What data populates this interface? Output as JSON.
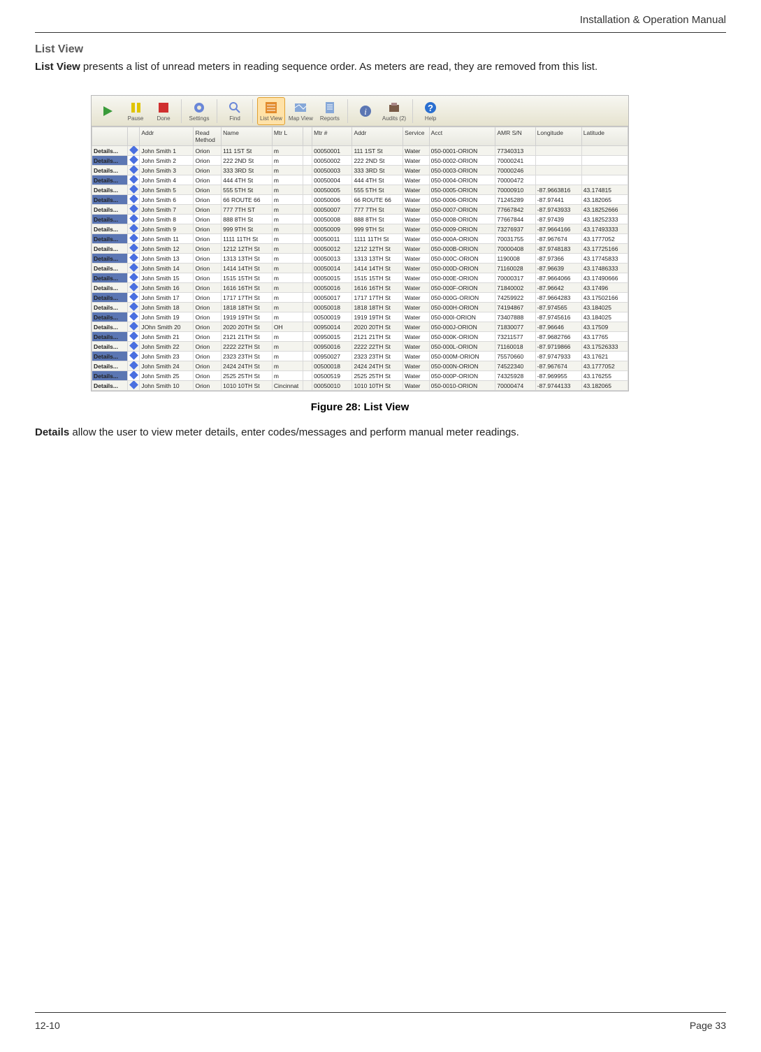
{
  "header": {
    "right": "Installation & Operation Manual"
  },
  "section": {
    "title": "List View",
    "intro_bold": "List View",
    "intro_rest": " presents a list of unread meters in reading sequence order.  As meters are read, they are removed from this list."
  },
  "figure_caption": "Figure 28:  List View",
  "details_text_bold": "Details",
  "details_text_rest": " allow the user to view meter details, enter codes/messages and perform manual meter readings.",
  "footer": {
    "left": "12-10",
    "right": "Page 33"
  },
  "toolbar": {
    "items": [
      {
        "name": "play-icon",
        "label": "",
        "color": "#3a9b3a",
        "shape": "play"
      },
      {
        "name": "pause-icon",
        "label": "Pause",
        "color": "#e0c400",
        "shape": "pause"
      },
      {
        "name": "done-icon",
        "label": "Done",
        "color": "#d03030",
        "shape": "stop"
      },
      {
        "name": "sep"
      },
      {
        "name": "settings-icon",
        "label": "Settings",
        "color": "#6a87d8",
        "shape": "gear"
      },
      {
        "name": "sep"
      },
      {
        "name": "find-icon",
        "label": "Find",
        "color": "#6a87d8",
        "shape": "find"
      },
      {
        "name": "sep"
      },
      {
        "name": "listview-icon",
        "label": "List View",
        "color": "#e28b2c",
        "shape": "list",
        "selected": true
      },
      {
        "name": "mapview-icon",
        "label": "Map View",
        "color": "#86a8d8",
        "shape": "map"
      },
      {
        "name": "reports-icon",
        "label": "Reports",
        "color": "#86a8d8",
        "shape": "reports"
      },
      {
        "name": "sep"
      },
      {
        "name": "info-icon",
        "label": "",
        "color": "#5b76b3",
        "shape": "info"
      },
      {
        "name": "audits-icon",
        "label": "Audits (2)",
        "color": "#7a5c48",
        "shape": "audits"
      },
      {
        "name": "sep"
      },
      {
        "name": "help-icon",
        "label": "Help",
        "color": "#2a6fd0",
        "shape": "help"
      }
    ]
  },
  "columns": [
    "",
    "",
    "Addr",
    "Read Method",
    "Name",
    "Mtr L",
    "",
    "Mtr #",
    "Addr",
    "Service",
    "Acct",
    "AMR S/N",
    "Longitude",
    "Latitude"
  ],
  "details_label": "Details...",
  "rows": [
    {
      "name": "John Smith 1",
      "meth": "Orion",
      "addr1": "111 1ST St",
      "mtrl": "m",
      "mtrn": "00050001",
      "addr2": "111 1ST St",
      "svc": "Water",
      "acct": "050-0001-ORION",
      "amr": "77340313",
      "lon": "",
      "lat": ""
    },
    {
      "name": "John Smith 2",
      "meth": "Orion",
      "addr1": "222 2ND St",
      "mtrl": "m",
      "mtrn": "00050002",
      "addr2": "222 2ND St",
      "svc": "Water",
      "acct": "050-0002-ORION",
      "amr": "70000241",
      "lon": "",
      "lat": ""
    },
    {
      "name": "John Smith 3",
      "meth": "Orion",
      "addr1": "333 3RD St",
      "mtrl": "m",
      "mtrn": "00050003",
      "addr2": "333 3RD St",
      "svc": "Water",
      "acct": "050-0003-ORION",
      "amr": "70000246",
      "lon": "",
      "lat": ""
    },
    {
      "name": "John Smith 4",
      "meth": "Orion",
      "addr1": "444 4TH St",
      "mtrl": "m",
      "mtrn": "00050004",
      "addr2": "444 4TH St",
      "svc": "Water",
      "acct": "050-0004-ORION",
      "amr": "70000472",
      "lon": "",
      "lat": ""
    },
    {
      "name": "John Smith 5",
      "meth": "Orion",
      "addr1": "555 5TH St",
      "mtrl": "m",
      "mtrn": "00050005",
      "addr2": "555 5TH St",
      "svc": "Water",
      "acct": "050-0005-ORION",
      "amr": "70000910",
      "lon": "-87.9663816",
      "lat": "43.174815"
    },
    {
      "name": "John Smith 6",
      "meth": "Orion",
      "addr1": "66 ROUTE 66",
      "mtrl": "m",
      "mtrn": "00050006",
      "addr2": "66 ROUTE 66",
      "svc": "Water",
      "acct": "050-0006-ORION",
      "amr": "71245289",
      "lon": "-87.97441",
      "lat": "43.182065"
    },
    {
      "name": "John Smith 7",
      "meth": "Orion",
      "addr1": "777 7TH ST",
      "mtrl": "m",
      "mtrn": "00050007",
      "addr2": "777 7TH St",
      "svc": "Water",
      "acct": "050-0007-ORION",
      "amr": "77667842",
      "lon": "-87.9743933",
      "lat": "43.18252666"
    },
    {
      "name": "John Smith 8",
      "meth": "Orion",
      "addr1": "888 8TH St",
      "mtrl": "m",
      "mtrn": "00050008",
      "addr2": "888 8TH St",
      "svc": "Water",
      "acct": "050-0008-ORION",
      "amr": "77667844",
      "lon": "-87.97439",
      "lat": "43.18252333"
    },
    {
      "name": "John Smith 9",
      "meth": "Orion",
      "addr1": "999 9TH St",
      "mtrl": "m",
      "mtrn": "00050009",
      "addr2": "999 9TH St",
      "svc": "Water",
      "acct": "050-0009-ORION",
      "amr": "73276937",
      "lon": "-87.9664166",
      "lat": "43.17493333"
    },
    {
      "name": "John Smith 11",
      "meth": "Orion",
      "addr1": "1111 11TH St",
      "mtrl": "m",
      "mtrn": "00050011",
      "addr2": "1111 11TH St",
      "svc": "Water",
      "acct": "050-000A-ORION",
      "amr": "70031755",
      "lon": "-87.967674",
      "lat": "43.1777052"
    },
    {
      "name": "John Smith 12",
      "meth": "Orion",
      "addr1": "1212 12TH St",
      "mtrl": "m",
      "mtrn": "00050012",
      "addr2": "1212 12TH St",
      "svc": "Water",
      "acct": "050-000B-ORION",
      "amr": "70000408",
      "lon": "-87.9748183",
      "lat": "43.17725166"
    },
    {
      "name": "John Smith 13",
      "meth": "Orion",
      "addr1": "1313 13TH St",
      "mtrl": "m",
      "mtrn": "00050013",
      "addr2": "1313 13TH St",
      "svc": "Water",
      "acct": "050-000C-ORION",
      "amr": "1190008",
      "lon": "-87.97366",
      "lat": "43.17745833"
    },
    {
      "name": "John Smith 14",
      "meth": "Orion",
      "addr1": "1414 14TH St",
      "mtrl": "m",
      "mtrn": "00050014",
      "addr2": "1414 14TH St",
      "svc": "Water",
      "acct": "050-000D-ORION",
      "amr": "71160028",
      "lon": "-87.96639",
      "lat": "43.17486333"
    },
    {
      "name": "John Smith 15",
      "meth": "Orion",
      "addr1": "1515 15TH St",
      "mtrl": "m",
      "mtrn": "00050015",
      "addr2": "1515 15TH St",
      "svc": "Water",
      "acct": "050-000E-ORION",
      "amr": "70000317",
      "lon": "-87.9664066",
      "lat": "43.17490666"
    },
    {
      "name": "John Smith 16",
      "meth": "Orion",
      "addr1": "1616 16TH St",
      "mtrl": "m",
      "mtrn": "00050016",
      "addr2": "1616 16TH St",
      "svc": "Water",
      "acct": "050-000F-ORION",
      "amr": "71840002",
      "lon": "-87.96642",
      "lat": "43.17496"
    },
    {
      "name": "John Smith 17",
      "meth": "Orion",
      "addr1": "1717 17TH St",
      "mtrl": "m",
      "mtrn": "00050017",
      "addr2": "1717 17TH St",
      "svc": "Water",
      "acct": "050-000G-ORION",
      "amr": "74259922",
      "lon": "-87.9664283",
      "lat": "43.17502166"
    },
    {
      "name": "John Smith 18",
      "meth": "Orion",
      "addr1": "1818 18TH St",
      "mtrl": "m",
      "mtrn": "00050018",
      "addr2": "1818 18TH St",
      "svc": "Water",
      "acct": "050-000H-ORION",
      "amr": "74194867",
      "lon": "-87.974565",
      "lat": "43.184025"
    },
    {
      "name": "John Smith 19",
      "meth": "Orion",
      "addr1": "1919 19TH St",
      "mtrl": "m",
      "mtrn": "00500019",
      "addr2": "1919 19TH St",
      "svc": "Water",
      "acct": "050-000I-ORION",
      "amr": "73407888",
      "lon": "-87.9745616",
      "lat": "43.184025"
    },
    {
      "name": "JOhn Smith 20",
      "meth": "Orion",
      "addr1": "2020 20TH St",
      "mtrl": "OH",
      "mtrn": "00950014",
      "addr2": "2020 20TH St",
      "svc": "Water",
      "acct": "050-000J-ORION",
      "amr": "71830077",
      "lon": "-87.96646",
      "lat": "43.17509"
    },
    {
      "name": "John Smith 21",
      "meth": "Orion",
      "addr1": "2121 21TH St",
      "mtrl": "m",
      "mtrn": "00950015",
      "addr2": "2121 21TH St",
      "svc": "Water",
      "acct": "050-000K-ORION",
      "amr": "73211577",
      "lon": "-87.9682766",
      "lat": "43.17765"
    },
    {
      "name": "John Smith 22",
      "meth": "Orion",
      "addr1": "2222 22TH St",
      "mtrl": "m",
      "mtrn": "00950016",
      "addr2": "2222 22TH St",
      "svc": "Water",
      "acct": "050-000L-ORION",
      "amr": "71160018",
      "lon": "-87.9719866",
      "lat": "43.17526333"
    },
    {
      "name": "John Smith 23",
      "meth": "Orion",
      "addr1": "2323 23TH St",
      "mtrl": "m",
      "mtrn": "00950027",
      "addr2": "2323 23TH St",
      "svc": "Water",
      "acct": "050-000M-ORION",
      "amr": "75570660",
      "lon": "-87.9747933",
      "lat": "43.17621"
    },
    {
      "name": "John Smith 24",
      "meth": "Orion",
      "addr1": "2424 24TH St",
      "mtrl": "m",
      "mtrn": "00500018",
      "addr2": "2424 24TH St",
      "svc": "Water",
      "acct": "050-000N-ORION",
      "amr": "74522340",
      "lon": "-87.967674",
      "lat": "43.1777052"
    },
    {
      "name": "John Smith 25",
      "meth": "Orion",
      "addr1": "2525 25TH St",
      "mtrl": "m",
      "mtrn": "00500519",
      "addr2": "2525 25TH St",
      "svc": "Water",
      "acct": "050-000P-ORION",
      "amr": "74325928",
      "lon": "-87.969955",
      "lat": "43.176255"
    },
    {
      "name": "John Smith 10",
      "meth": "Orion",
      "addr1": "1010 10TH St",
      "mtrl": "Cincinnat",
      "mtrn": "00050010",
      "addr2": "1010 10TH St",
      "svc": "Water",
      "acct": "050-0010-ORION",
      "amr": "70000474",
      "lon": "-87.9744133",
      "lat": "43.182065"
    }
  ],
  "colors": {
    "page_text": "#222222",
    "section_title": "#595959",
    "table_header_bg_top": "#f7f7f2",
    "table_header_bg_bot": "#e8e8e0",
    "row_alt": "#f4f4ee",
    "details_btn": "#5b76b3",
    "selected_toolbar": "#ffe2a8"
  }
}
